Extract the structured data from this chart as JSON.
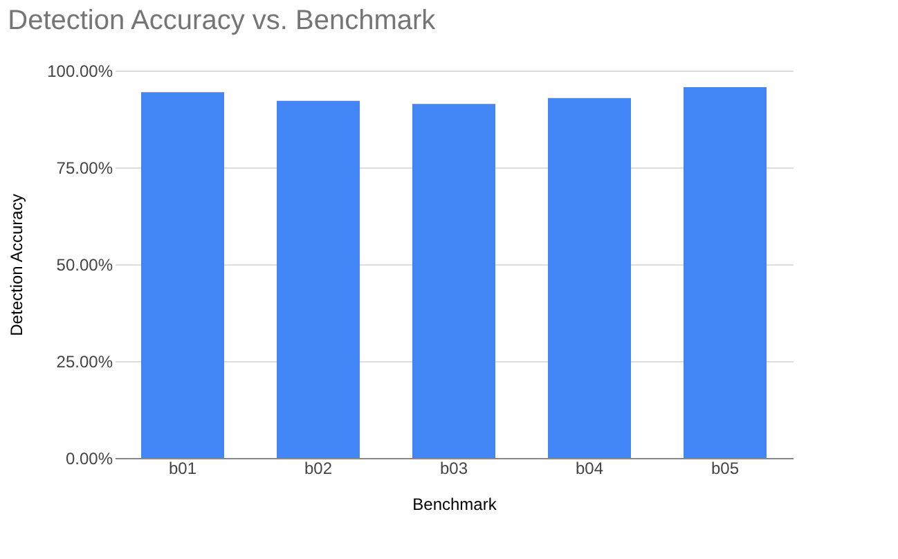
{
  "chart_data": {
    "type": "bar",
    "title": "Detection Accuracy vs. Benchmark",
    "xlabel": "Benchmark",
    "ylabel": "Detection Accuracy",
    "categories": [
      "b01",
      "b02",
      "b03",
      "b04",
      "b05"
    ],
    "values": [
      94.4,
      92.2,
      91.4,
      92.9,
      95.7
    ],
    "color": "#4285f4",
    "ylim": [
      0,
      100
    ],
    "yticks": [
      {
        "value": 0,
        "label": "0.00%"
      },
      {
        "value": 25,
        "label": "25.00%"
      },
      {
        "value": 50,
        "label": "50.00%"
      },
      {
        "value": 75,
        "label": "75.00%"
      },
      {
        "value": 100,
        "label": "100.00%"
      }
    ],
    "grid": "y"
  }
}
